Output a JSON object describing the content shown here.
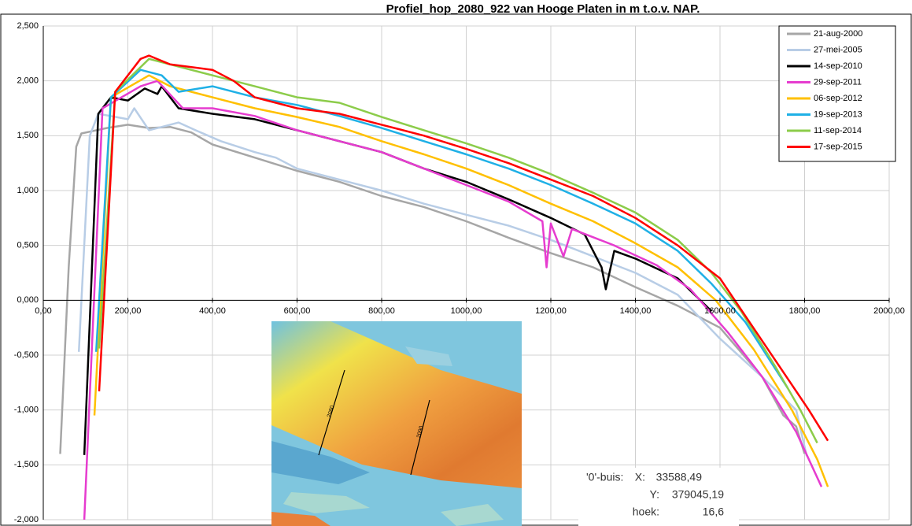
{
  "chart_data": {
    "type": "line",
    "title": "Profiel_hop_2080_922 van Hooge Platen in m t.o.v. NAP.",
    "xlim": [
      0,
      2000
    ],
    "ylim": [
      -2,
      2.5
    ],
    "xticks": [
      {
        "value": 0,
        "label": "0,00"
      },
      {
        "value": 200,
        "label": "200,00"
      },
      {
        "value": 400,
        "label": "400,00"
      },
      {
        "value": 600,
        "label": "600,00"
      },
      {
        "value": 800,
        "label": "800,00"
      },
      {
        "value": 1000,
        "label": "1000,00"
      },
      {
        "value": 1200,
        "label": "1200,00"
      },
      {
        "value": 1400,
        "label": "1400,00"
      },
      {
        "value": 1600,
        "label": "1600,00"
      },
      {
        "value": 1800,
        "label": "1800,00"
      },
      {
        "value": 2000,
        "label": "2000,00"
      }
    ],
    "yticks": [
      {
        "value": 2.5,
        "label": "2,500"
      },
      {
        "value": 2,
        "label": "2,000"
      },
      {
        "value": 1.5,
        "label": "1,500"
      },
      {
        "value": 1,
        "label": "1,000"
      },
      {
        "value": 0.5,
        "label": "0,500"
      },
      {
        "value": 0,
        "label": "0,000"
      },
      {
        "value": -0.5,
        "label": "-0,500"
      },
      {
        "value": -1,
        "label": "-1,000"
      },
      {
        "value": -1.5,
        "label": "-1,500"
      },
      {
        "value": -2,
        "label": "-2,000"
      }
    ],
    "grid": true,
    "legend": "top-right",
    "series": [
      {
        "name": "21-aug-2000",
        "color": "#a6a6a6",
        "x": [
          40,
          60,
          78,
          90,
          150,
          200,
          250,
          300,
          350,
          400,
          500,
          600,
          700,
          800,
          900,
          1000,
          1100,
          1200,
          1300,
          1400,
          1500,
          1600,
          1700,
          1750,
          1780,
          1800
        ],
        "values": [
          -1.4,
          0.3,
          1.4,
          1.52,
          1.57,
          1.6,
          1.57,
          1.58,
          1.53,
          1.42,
          1.3,
          1.18,
          1.08,
          0.95,
          0.85,
          0.72,
          0.57,
          0.43,
          0.3,
          0.12,
          -0.05,
          -0.25,
          -0.7,
          -1.05,
          -1.15,
          -1.4
        ]
      },
      {
        "name": "27-mei-2005",
        "color": "#b8cde6",
        "x": [
          84,
          110,
          130,
          200,
          215,
          250,
          320,
          360,
          420,
          500,
          550,
          600,
          700,
          800,
          900,
          1000,
          1100,
          1200,
          1300,
          1400,
          1500,
          1600,
          1700,
          1780,
          1805
        ],
        "values": [
          -0.47,
          1.5,
          1.7,
          1.65,
          1.75,
          1.55,
          1.62,
          1.55,
          1.45,
          1.35,
          1.3,
          1.2,
          1.1,
          1.0,
          0.88,
          0.78,
          0.68,
          0.55,
          0.4,
          0.25,
          0.05,
          -0.35,
          -0.7,
          -1.0,
          -1.42
        ]
      },
      {
        "name": "14-sep-2010",
        "color": "#000000",
        "x": [
          97,
          130,
          160,
          200,
          240,
          270,
          280,
          320,
          400,
          500,
          600,
          700,
          800,
          900,
          1000,
          1100,
          1200,
          1280,
          1320,
          1330,
          1350,
          1400,
          1500,
          1580
        ],
        "values": [
          -1.41,
          1.7,
          1.85,
          1.82,
          1.93,
          1.88,
          1.95,
          1.75,
          1.7,
          1.65,
          1.55,
          1.45,
          1.35,
          1.2,
          1.08,
          0.92,
          0.75,
          0.6,
          0.3,
          0.1,
          0.45,
          0.38,
          0.2,
          -0.1
        ]
      },
      {
        "name": "29-sep-2011",
        "color": "#e63ccf",
        "x": [
          97,
          140,
          230,
          270,
          330,
          400,
          500,
          600,
          700,
          800,
          900,
          1000,
          1100,
          1180,
          1190,
          1200,
          1230,
          1250,
          1350,
          1450,
          1530,
          1620,
          1700,
          1780,
          1840
        ],
        "values": [
          -2.0,
          1.75,
          1.95,
          2.0,
          1.75,
          1.75,
          1.68,
          1.55,
          1.45,
          1.35,
          1.2,
          1.05,
          0.9,
          0.72,
          0.3,
          0.7,
          0.4,
          0.65,
          0.5,
          0.32,
          0.1,
          -0.3,
          -0.7,
          -1.2,
          -1.7
        ]
      },
      {
        "name": "06-sep-2012",
        "color": "#ffc000",
        "x": [
          121,
          160,
          250,
          300,
          400,
          500,
          600,
          700,
          800,
          900,
          1000,
          1100,
          1200,
          1300,
          1400,
          1500,
          1590,
          1680,
          1770,
          1830,
          1855
        ],
        "values": [
          -1.05,
          1.85,
          2.05,
          1.95,
          1.85,
          1.75,
          1.67,
          1.58,
          1.45,
          1.33,
          1.2,
          1.05,
          0.88,
          0.72,
          0.52,
          0.3,
          0.0,
          -0.45,
          -1.0,
          -1.45,
          -1.7
        ]
      },
      {
        "name": "19-sep-2013",
        "color": "#1fb0e6",
        "x": [
          125,
          160,
          230,
          280,
          320,
          400,
          500,
          600,
          700,
          800,
          900,
          1000,
          1100,
          1200,
          1300,
          1400,
          1500,
          1580,
          1660,
          1760
        ],
        "values": [
          -0.47,
          1.85,
          2.1,
          2.05,
          1.9,
          1.95,
          1.85,
          1.78,
          1.68,
          1.57,
          1.45,
          1.33,
          1.2,
          1.05,
          0.88,
          0.7,
          0.45,
          0.15,
          -0.2,
          -0.8
        ]
      },
      {
        "name": "11-sep-2014",
        "color": "#8ccc4a",
        "x": [
          132,
          170,
          250,
          300,
          400,
          500,
          600,
          700,
          800,
          900,
          1000,
          1100,
          1200,
          1300,
          1400,
          1500,
          1580,
          1650,
          1730,
          1790,
          1830
        ],
        "values": [
          -0.44,
          1.9,
          2.2,
          2.15,
          2.05,
          1.95,
          1.85,
          1.8,
          1.67,
          1.55,
          1.43,
          1.3,
          1.15,
          0.98,
          0.8,
          0.55,
          0.25,
          -0.1,
          -0.6,
          -1.0,
          -1.3
        ]
      },
      {
        "name": "17-sep-2015",
        "color": "#ff0000",
        "x": [
          132,
          170,
          230,
          250,
          300,
          400,
          450,
          500,
          600,
          700,
          800,
          900,
          1000,
          1100,
          1200,
          1300,
          1400,
          1500,
          1600,
          1670,
          1740,
          1810,
          1855
        ],
        "values": [
          -0.83,
          1.9,
          2.2,
          2.23,
          2.15,
          2.1,
          2.0,
          1.85,
          1.75,
          1.7,
          1.6,
          1.5,
          1.38,
          1.25,
          1.1,
          0.95,
          0.75,
          0.5,
          0.2,
          -0.2,
          -0.6,
          -1.0,
          -1.28
        ]
      }
    ],
    "map_labels": [
      "2080",
      "2090"
    ],
    "annotation": {
      "title": "'0'-buis:",
      "rows": [
        {
          "label": "X:",
          "value": "33588,49"
        },
        {
          "label": "Y:",
          "value": "379045,19"
        },
        {
          "label": "hoek:",
          "value": "16,6"
        }
      ]
    }
  }
}
